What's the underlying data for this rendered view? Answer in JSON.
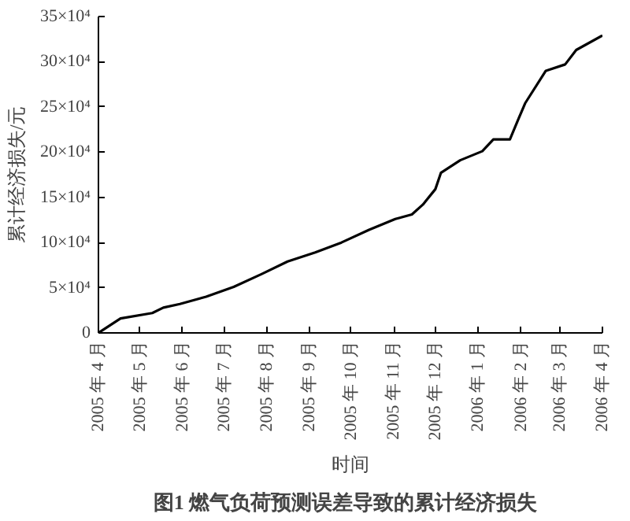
{
  "chart_data": {
    "type": "line",
    "title": "图1   燃气负荷预测误差导致的累计经济损失",
    "xlabel": "时间",
    "ylabel": "累计经济损失/元",
    "x": [
      "2005-04-01",
      "2005-04-17",
      "2005-05-10",
      "2005-05-18",
      "2005-05-30",
      "2005-06-18",
      "2005-07-08",
      "2005-07-28",
      "2005-08-16",
      "2005-09-05",
      "2005-09-24",
      "2005-10-14",
      "2005-11-02",
      "2005-11-14",
      "2005-11-22",
      "2005-12-01",
      "2005-12-05",
      "2005-12-19",
      "2006-01-04",
      "2006-01-12",
      "2006-01-24",
      "2006-01-30",
      "2006-02-04",
      "2006-02-19",
      "2006-03-05",
      "2006-03-13",
      "2006-04-01"
    ],
    "series": [
      {
        "color": "#000000",
        "values": [
          0,
          16000,
          22000,
          28000,
          32000,
          40000,
          51000,
          65000,
          79000,
          89000,
          100000,
          114000,
          126000,
          131000,
          142000,
          159000,
          177000,
          191000,
          201000,
          214000,
          214000,
          236000,
          254000,
          290000,
          297000,
          313000,
          329000
        ]
      }
    ],
    "xlim": [
      "2005-04-01",
      "2006-04-01"
    ],
    "xticks": [
      {
        "value": "2005-04-01",
        "label": "2005 年 4 月"
      },
      {
        "value": "2005-05-01",
        "label": "2005 年 5 月"
      },
      {
        "value": "2005-06-01",
        "label": "2005 年 6 月"
      },
      {
        "value": "2005-07-01",
        "label": "2005 年 7 月"
      },
      {
        "value": "2005-08-01",
        "label": "2005 年 8 月"
      },
      {
        "value": "2005-09-01",
        "label": "2005 年 9 月"
      },
      {
        "value": "2005-10-01",
        "label": "2005 年 10 月"
      },
      {
        "value": "2005-11-01",
        "label": "2005 年 11 月"
      },
      {
        "value": "2005-12-01",
        "label": "2005 年 12 月"
      },
      {
        "value": "2006-01-01",
        "label": "2006 年 1 月"
      },
      {
        "value": "2006-02-01",
        "label": "2006 年 2 月"
      },
      {
        "value": "2006-03-01",
        "label": "2006 年 3 月"
      },
      {
        "value": "2006-04-01",
        "label": "2006 年 4 月"
      }
    ],
    "ylim": [
      0,
      350000
    ],
    "yticks": [
      0,
      {
        "value": 50000,
        "label": "5×10⁴"
      },
      {
        "value": 100000,
        "label": "10×10⁴"
      },
      {
        "value": 150000,
        "label": "15×10⁴"
      },
      {
        "value": 200000,
        "label": "20×10⁴"
      },
      {
        "value": 250000,
        "label": "25×10⁴"
      },
      {
        "value": 300000,
        "label": "30×10⁴"
      },
      {
        "value": 350000,
        "label": "35×10⁴"
      }
    ],
    "line_style": "solid"
  }
}
